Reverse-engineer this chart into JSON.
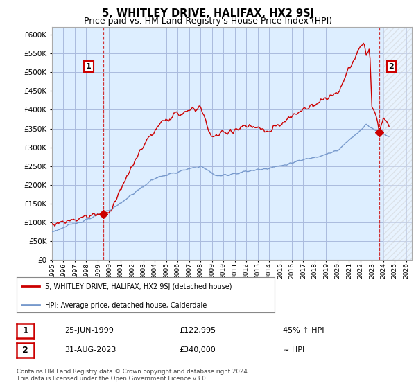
{
  "title": "5, WHITLEY DRIVE, HALIFAX, HX2 9SJ",
  "subtitle": "Price paid vs. HM Land Registry's House Price Index (HPI)",
  "ylim": [
    0,
    620000
  ],
  "yticks": [
    0,
    50000,
    100000,
    150000,
    200000,
    250000,
    300000,
    350000,
    400000,
    450000,
    500000,
    550000,
    600000
  ],
  "xlim_start": 1995.0,
  "xlim_end": 2026.5,
  "xtick_years": [
    1995,
    1996,
    1997,
    1998,
    1999,
    2000,
    2001,
    2002,
    2003,
    2004,
    2005,
    2006,
    2007,
    2008,
    2009,
    2010,
    2011,
    2012,
    2013,
    2014,
    2015,
    2016,
    2017,
    2018,
    2019,
    2020,
    2021,
    2022,
    2023,
    2024,
    2025,
    2026
  ],
  "hpi_color": "#7799cc",
  "price_color": "#cc0000",
  "chart_bg": "#ddeeff",
  "background_color": "#ffffff",
  "grid_color": "#aabbdd",
  "marker1_year": 1999.48,
  "marker1_price": 122995,
  "marker2_year": 2023.66,
  "marker2_price": 340000,
  "hatch_start": 2024.0,
  "legend_label_price": "5, WHITLEY DRIVE, HALIFAX, HX2 9SJ (detached house)",
  "legend_label_hpi": "HPI: Average price, detached house, Calderdale",
  "table_rows": [
    {
      "num": "1",
      "date": "25-JUN-1999",
      "price": "£122,995",
      "info": "45% ↑ HPI"
    },
    {
      "num": "2",
      "date": "31-AUG-2023",
      "price": "£340,000",
      "info": "≈ HPI"
    }
  ],
  "footnote": "Contains HM Land Registry data © Crown copyright and database right 2024.\nThis data is licensed under the Open Government Licence v3.0.",
  "title_fontsize": 10.5,
  "subtitle_fontsize": 9
}
